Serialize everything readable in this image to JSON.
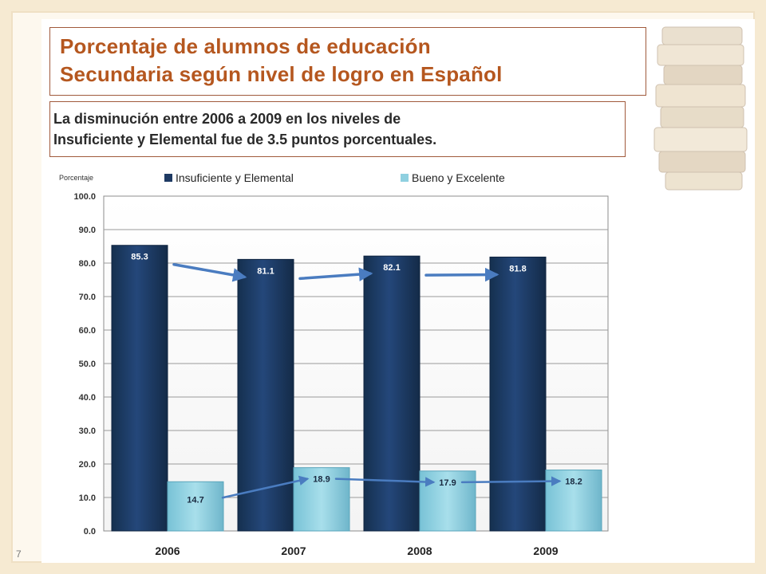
{
  "slide": {
    "title_lines": [
      "Porcentaje de alumnos de educación",
      "Secundaria según nivel de logro en Español"
    ],
    "subtitle_lines": [
      "La disminución entre 2006 a 2009 en los niveles de",
      "Insuficiente y Elemental fue de 3.5 puntos porcentuales."
    ],
    "page_number": "7"
  },
  "colors": {
    "title": "#b5571f",
    "series_dark": "#1e3a63",
    "series_light": "#8fd0e0",
    "arrow": "#4a7cc0"
  },
  "chart_data": {
    "type": "bar",
    "title": "",
    "ylabel": "Porcentaje",
    "xlabel": "",
    "ylim": [
      0,
      100
    ],
    "yticks": [
      "0.0",
      "10.0",
      "20.0",
      "30.0",
      "40.0",
      "50.0",
      "60.0",
      "70.0",
      "80.0",
      "90.0",
      "100.0"
    ],
    "grid": true,
    "legend": "top",
    "categories": [
      "2006",
      "2007",
      "2008",
      "2009"
    ],
    "series": [
      {
        "name": "Insuficiente y Elemental",
        "values": [
          85.3,
          81.1,
          82.1,
          81.8
        ],
        "labels": [
          "85.3",
          "81.1",
          "82.1",
          "81.8"
        ]
      },
      {
        "name": "Bueno y Excelente",
        "values": [
          14.7,
          18.9,
          17.9,
          18.2
        ],
        "labels": [
          "14.7",
          "18.9",
          "17.9",
          "18.2"
        ]
      }
    ]
  }
}
